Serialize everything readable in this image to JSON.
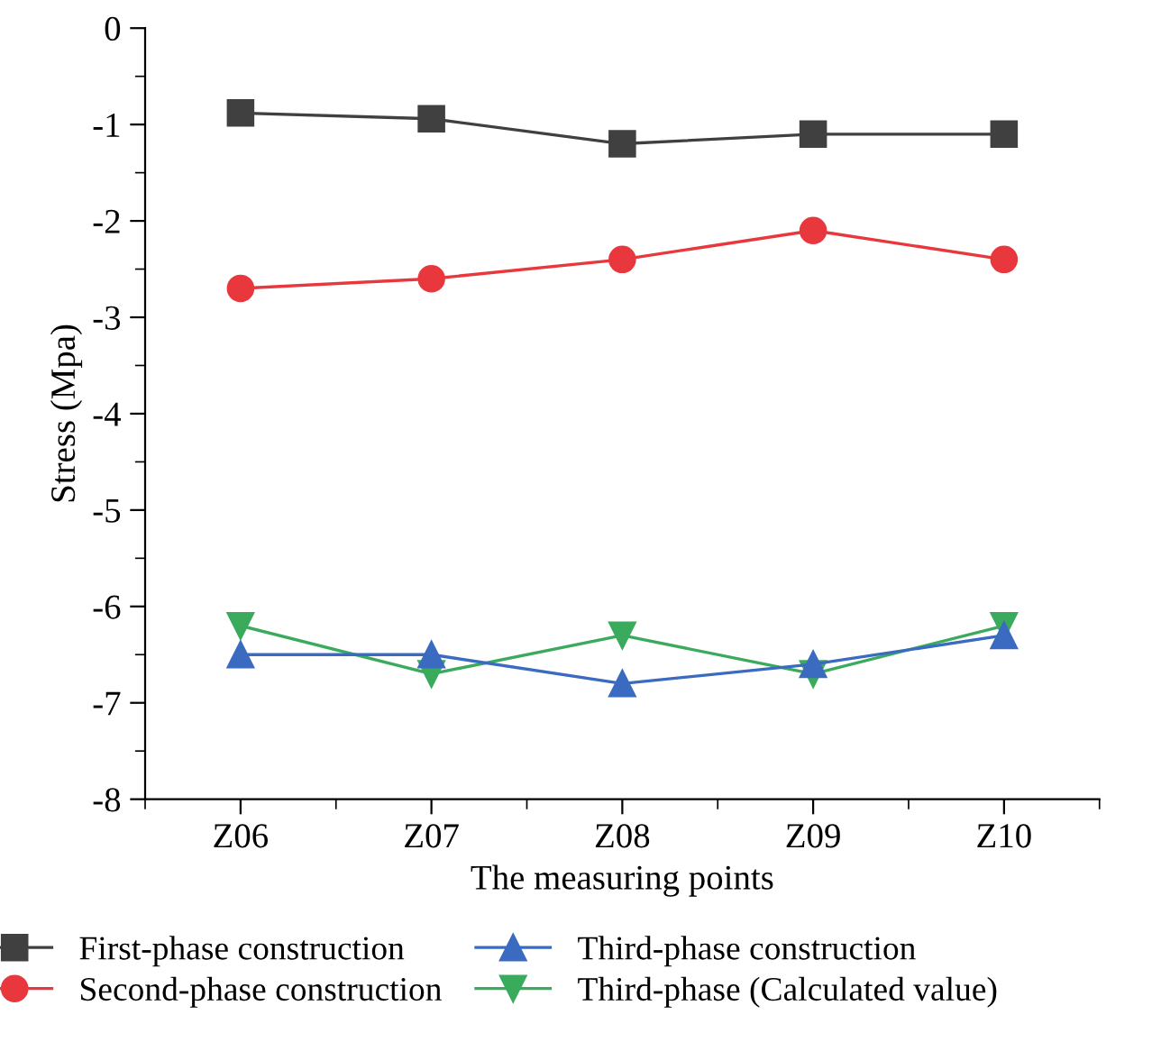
{
  "chart_data": {
    "type": "line",
    "xlabel": "The measuring points",
    "ylabel": "Stress (Mpa)",
    "categories": [
      "Z06",
      "Z07",
      "Z08",
      "Z09",
      "Z10"
    ],
    "series": [
      {
        "name": "First-phase construction",
        "color": "#404040",
        "marker": "square",
        "values": [
          -0.88,
          -0.94,
          -1.2,
          -1.1,
          -1.1
        ]
      },
      {
        "name": "Second-phase construction",
        "color": "#e8383d",
        "marker": "circle",
        "values": [
          -2.7,
          -2.6,
          -2.4,
          -2.1,
          -2.4
        ]
      },
      {
        "name": "Third-phase construction",
        "color": "#3a6bc0",
        "marker": "triangle",
        "values": [
          -6.5,
          -6.5,
          -6.8,
          -6.6,
          -6.3
        ]
      },
      {
        "name": "Third-phase (Calculated value)",
        "color": "#3aaa5c",
        "marker": "triangle_down",
        "values": [
          -6.2,
          -6.7,
          -6.3,
          -6.7,
          -6.2
        ]
      }
    ],
    "ylim": [
      -8,
      0
    ],
    "yticks": [
      -8,
      -7,
      -6,
      -5,
      -4,
      -3,
      -2,
      -1,
      0
    ],
    "grid": false,
    "legend": "bottom",
    "line_style": "solid"
  }
}
